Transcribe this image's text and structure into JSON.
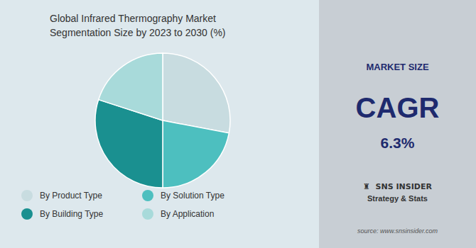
{
  "chart_data": {
    "type": "pie",
    "title": "Global Infrared Thermography Market\nSegmentation Size by 2023 to 2030 (%)",
    "categories": [
      "By Product Type",
      "By Solution Type",
      "By Building Type",
      "By Application"
    ],
    "values": [
      28,
      22,
      30,
      20
    ],
    "colors": [
      "#c8dce0",
      "#4dbfbf",
      "#1a9090",
      "#a8dada"
    ],
    "legend": "bottom",
    "annotations": [
      "MARKET SIZE",
      "CAGR",
      "6.3%",
      "♜  SNS INSIDER",
      "Strategy & Stats",
      "source: www.snsinsider.com"
    ]
  }
}
